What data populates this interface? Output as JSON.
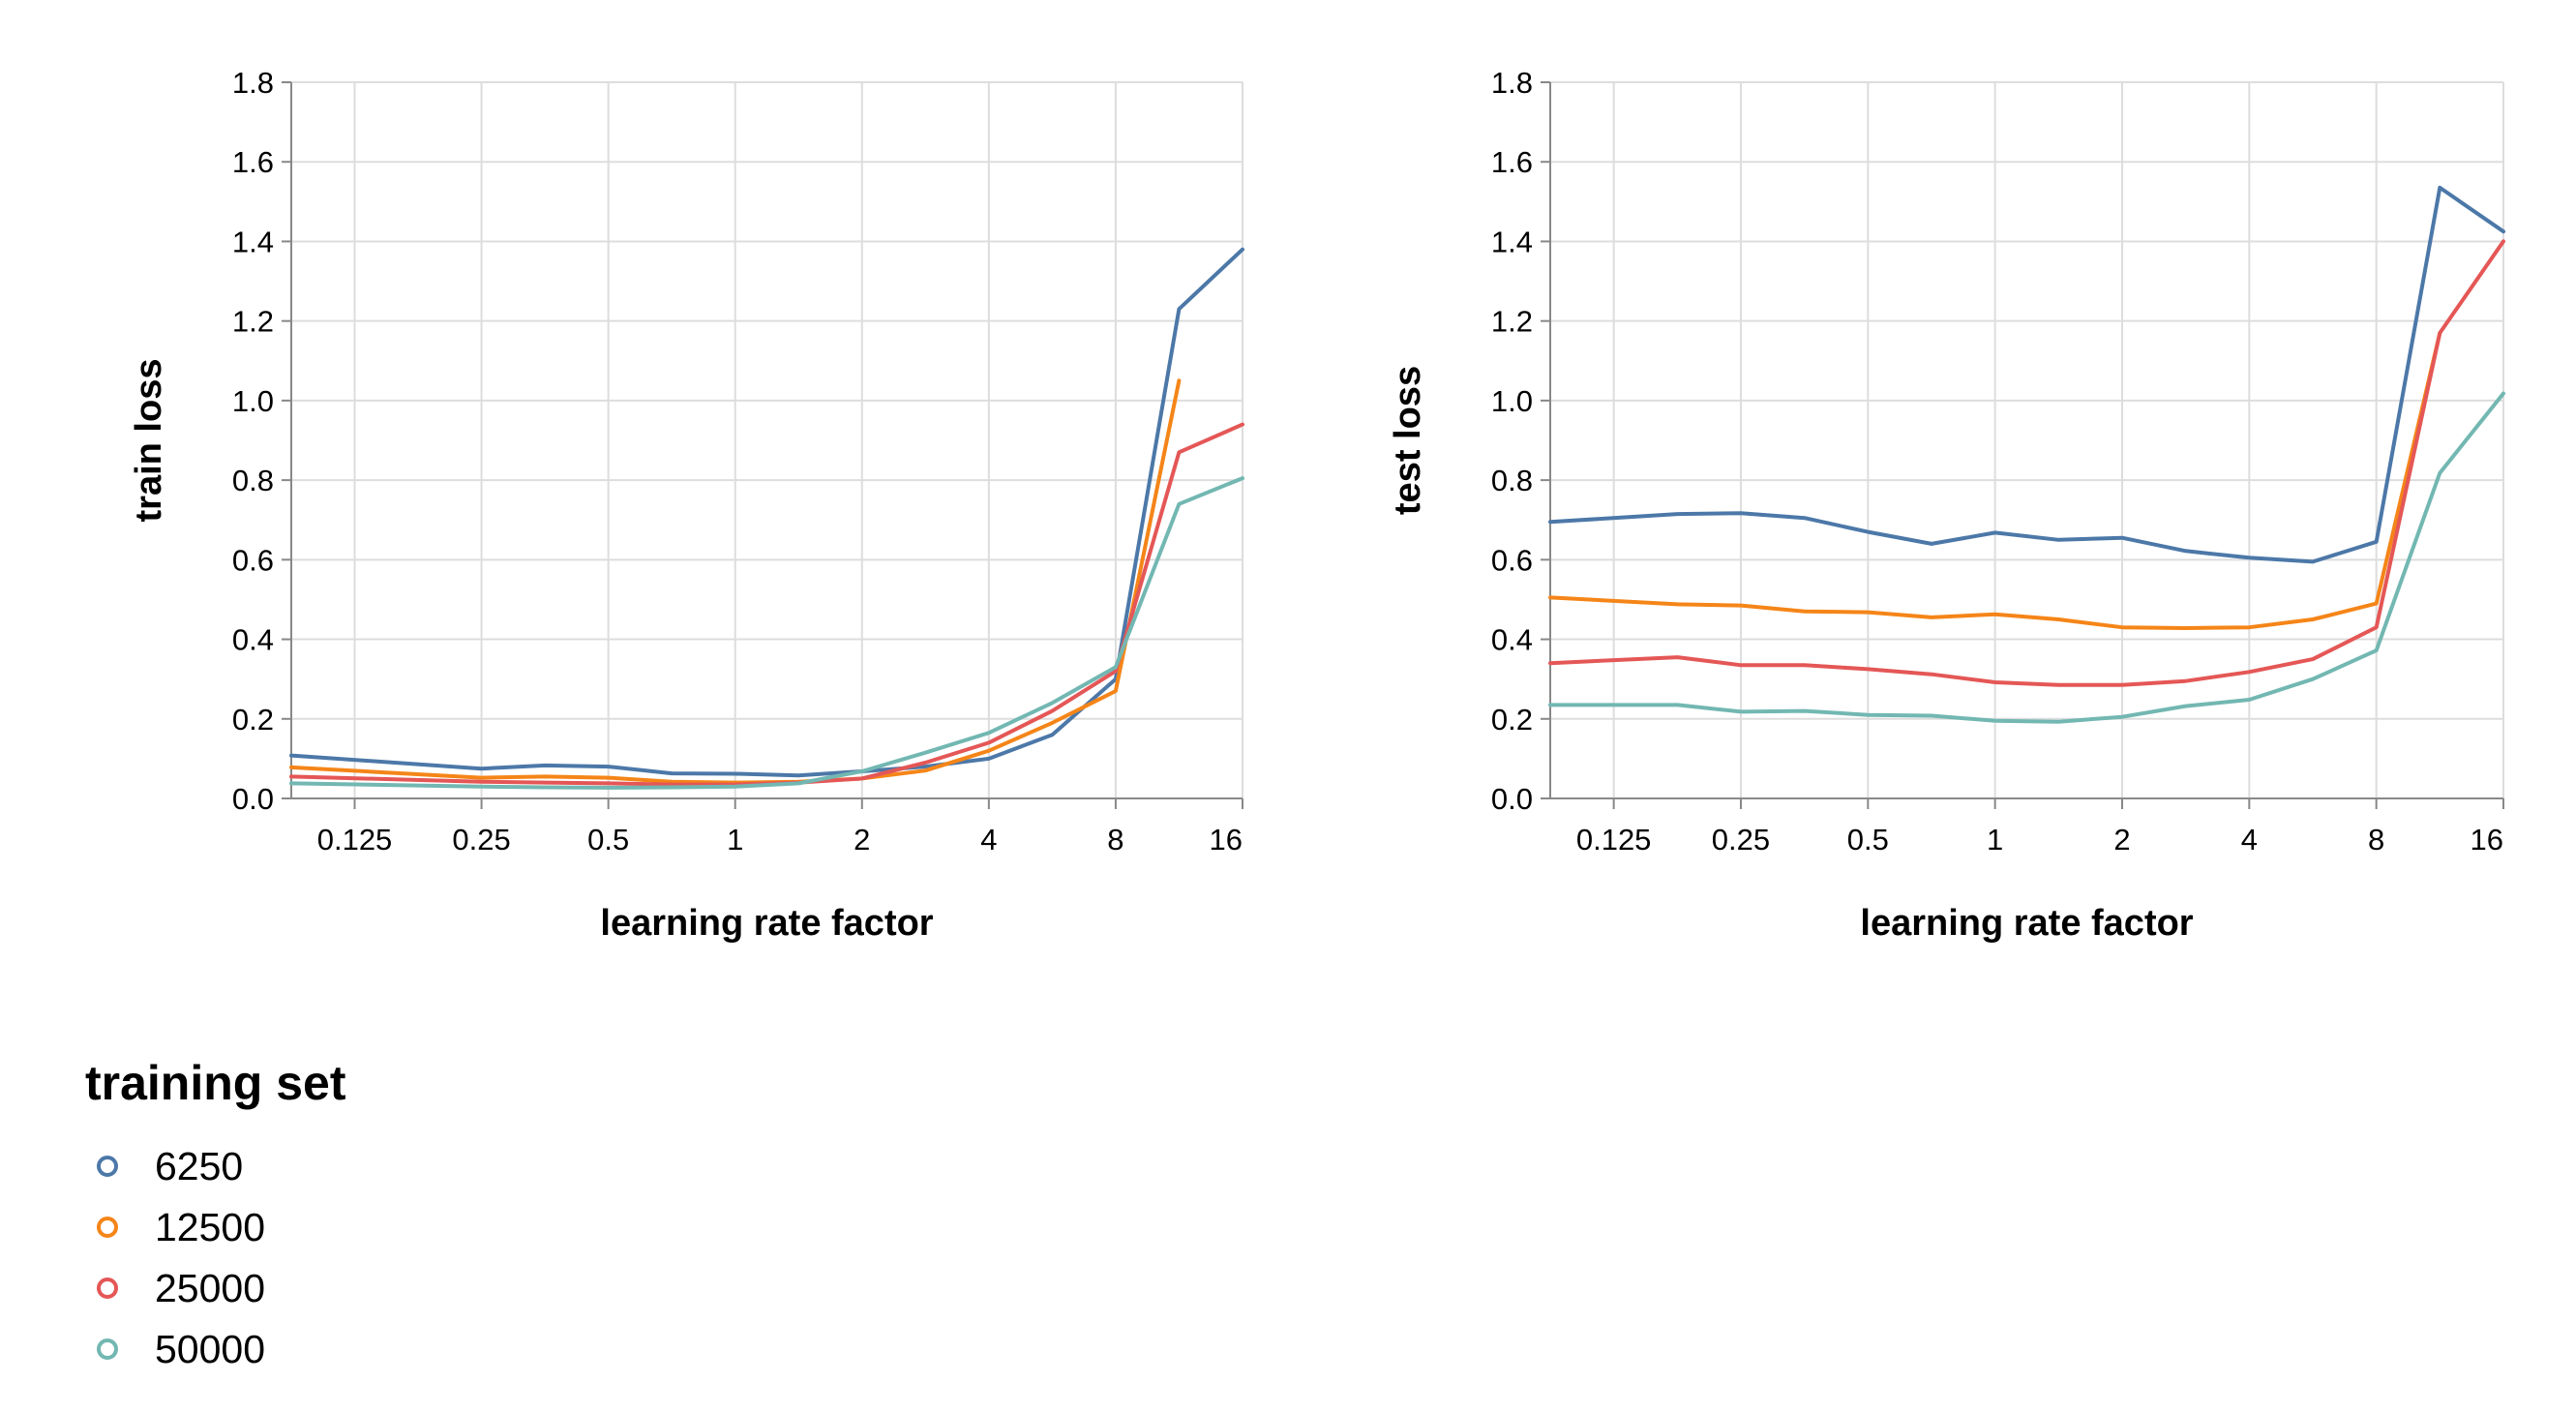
{
  "legend": {
    "title": "training set",
    "entries": [
      {
        "label": "6250",
        "color": "#4c78a8"
      },
      {
        "label": "12500",
        "color": "#f58518"
      },
      {
        "label": "25000",
        "color": "#e45756"
      },
      {
        "label": "50000",
        "color": "#72b7b2"
      }
    ]
  },
  "chart_data": [
    {
      "type": "line",
      "xlabel": "learning rate factor",
      "ylabel": "train loss",
      "xscale": "log2",
      "xlim": [
        0.0884,
        16
      ],
      "ylim": [
        0,
        1.8
      ],
      "x_ticks": [
        0.125,
        0.25,
        0.5,
        1,
        2,
        4,
        8,
        16
      ],
      "x_tick_labels": [
        "0.125",
        "0.25",
        "0.5",
        "1",
        "2",
        "4",
        "8",
        "16"
      ],
      "y_ticks": [
        0.0,
        0.2,
        0.4,
        0.6,
        0.8,
        1.0,
        1.2,
        1.4,
        1.6,
        1.8
      ],
      "y_tick_labels": [
        "0.0",
        "0.2",
        "0.4",
        "0.6",
        "0.8",
        "1.0",
        "1.2",
        "1.4",
        "1.6",
        "1.8"
      ],
      "grid": true,
      "series": [
        {
          "name": "6250",
          "color": "#4c78a8",
          "x": [
            0.0884,
            0.25,
            0.354,
            0.5,
            0.707,
            1,
            1.414,
            2,
            2.828,
            4,
            5.657,
            8,
            11.31,
            16
          ],
          "y": [
            0.108,
            0.075,
            0.083,
            0.08,
            0.063,
            0.062,
            0.058,
            0.068,
            0.08,
            0.1,
            0.16,
            0.3,
            1.23,
            1.38
          ]
        },
        {
          "name": "12500",
          "color": "#f58518",
          "x": [
            0.0884,
            0.25,
            0.354,
            0.5,
            0.707,
            1,
            1.414,
            2,
            2.828,
            4,
            5.657,
            8,
            11.31
          ],
          "y": [
            0.078,
            0.052,
            0.055,
            0.052,
            0.042,
            0.04,
            0.042,
            0.05,
            0.07,
            0.12,
            0.19,
            0.27,
            1.05
          ]
        },
        {
          "name": "25000",
          "color": "#e45756",
          "x": [
            0.0884,
            0.25,
            0.354,
            0.5,
            0.707,
            1,
            1.414,
            2,
            2.828,
            4,
            5.657,
            8,
            11.31,
            16
          ],
          "y": [
            0.055,
            0.042,
            0.04,
            0.038,
            0.035,
            0.035,
            0.04,
            0.05,
            0.09,
            0.14,
            0.22,
            0.32,
            0.87,
            0.94
          ]
        },
        {
          "name": "50000",
          "color": "#72b7b2",
          "x": [
            0.0884,
            0.25,
            0.354,
            0.5,
            0.707,
            1,
            1.414,
            2,
            2.828,
            4,
            5.657,
            8,
            11.31,
            16
          ],
          "y": [
            0.038,
            0.03,
            0.028,
            0.027,
            0.028,
            0.03,
            0.038,
            0.068,
            0.115,
            0.165,
            0.24,
            0.33,
            0.74,
            0.805
          ]
        }
      ]
    },
    {
      "type": "line",
      "xlabel": "learning rate factor",
      "ylabel": "test loss",
      "xscale": "log2",
      "xlim": [
        0.0884,
        16
      ],
      "ylim": [
        0,
        1.8
      ],
      "x_ticks": [
        0.125,
        0.25,
        0.5,
        1,
        2,
        4,
        8,
        16
      ],
      "x_tick_labels": [
        "0.125",
        "0.25",
        "0.5",
        "1",
        "2",
        "4",
        "8",
        "16"
      ],
      "y_ticks": [
        0.0,
        0.2,
        0.4,
        0.6,
        0.8,
        1.0,
        1.2,
        1.4,
        1.6,
        1.8
      ],
      "y_tick_labels": [
        "0.0",
        "0.2",
        "0.4",
        "0.6",
        "0.8",
        "1.0",
        "1.2",
        "1.4",
        "1.6",
        "1.8"
      ],
      "grid": true,
      "series": [
        {
          "name": "6250",
          "color": "#4c78a8",
          "x": [
            0.0884,
            0.177,
            0.25,
            0.354,
            0.5,
            0.707,
            1,
            1.414,
            2,
            2.828,
            4,
            5.657,
            8,
            11.31,
            16
          ],
          "y": [
            0.695,
            0.715,
            0.717,
            0.705,
            0.67,
            0.64,
            0.668,
            0.65,
            0.655,
            0.622,
            0.605,
            0.595,
            0.645,
            1.535,
            1.425
          ]
        },
        {
          "name": "12500",
          "color": "#f58518",
          "x": [
            0.0884,
            0.177,
            0.25,
            0.354,
            0.5,
            0.707,
            1,
            1.414,
            2,
            2.828,
            4,
            5.657,
            8,
            11.31
          ],
          "y": [
            0.505,
            0.488,
            0.485,
            0.47,
            0.468,
            0.455,
            0.463,
            0.45,
            0.43,
            0.428,
            0.43,
            0.45,
            0.49,
            1.17
          ]
        },
        {
          "name": "25000",
          "color": "#e45756",
          "x": [
            0.0884,
            0.177,
            0.25,
            0.354,
            0.5,
            0.707,
            1,
            1.414,
            2,
            2.828,
            4,
            5.657,
            8,
            11.31,
            16
          ],
          "y": [
            0.34,
            0.355,
            0.335,
            0.335,
            0.325,
            0.312,
            0.292,
            0.285,
            0.285,
            0.295,
            0.318,
            0.35,
            0.43,
            1.17,
            1.4
          ]
        },
        {
          "name": "50000",
          "color": "#72b7b2",
          "x": [
            0.0884,
            0.177,
            0.25,
            0.354,
            0.5,
            0.707,
            1,
            1.414,
            2,
            2.828,
            4,
            5.657,
            8,
            11.31,
            16
          ],
          "y": [
            0.235,
            0.235,
            0.218,
            0.22,
            0.21,
            0.208,
            0.195,
            0.193,
            0.205,
            0.232,
            0.248,
            0.3,
            0.372,
            0.818,
            1.018
          ]
        }
      ]
    }
  ]
}
